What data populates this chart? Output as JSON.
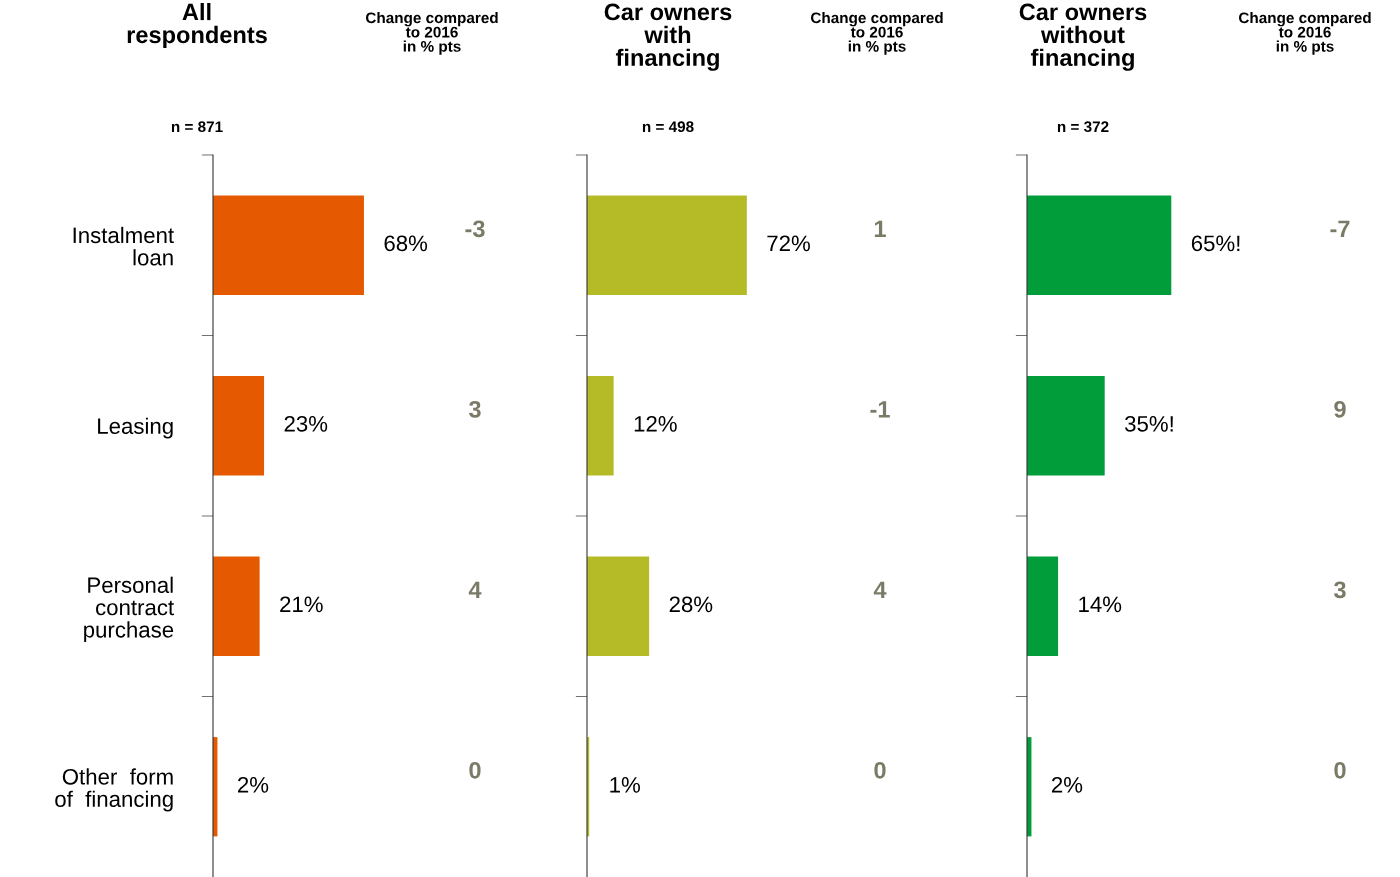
{
  "chart_data": [
    {
      "type": "bar",
      "orientation": "horizontal",
      "title": "All\nrespondents",
      "subtitle": "n = 871",
      "categories": [
        "Instalment\nloan",
        "Leasing",
        "Personal\ncontract\npurchase",
        "Other  form\nof  financing"
      ],
      "values": [
        68,
        23,
        21,
        2
      ],
      "value_labels": [
        "68%",
        "23%",
        "21%",
        "2%"
      ],
      "color": "#e55a00",
      "annotations": [
        "Change compared\nto 2016\nin % pts",
        "-3",
        "3",
        "4",
        "0"
      ],
      "tick_labels": "y",
      "grid": false,
      "legend": false
    },
    {
      "type": "bar",
      "orientation": "horizontal",
      "title": "Car owners\nwith\nfinancing",
      "subtitle": "n = 498",
      "categories": [
        null,
        null,
        null,
        null
      ],
      "values": [
        72,
        12,
        28,
        1
      ],
      "value_labels": [
        "72%",
        "12%",
        "28%",
        "1%"
      ],
      "color": "#b5bb27",
      "annotations": [
        "Change compared\nto 2016\nin % pts",
        "1",
        "-1",
        "4",
        "0"
      ],
      "tick_labels": false,
      "grid": false,
      "legend": false
    },
    {
      "type": "bar",
      "orientation": "horizontal",
      "title": "Car owners\nwithout\nfinancing",
      "subtitle": "n = 372",
      "categories": [
        null,
        null,
        null,
        null
      ],
      "values": [
        65,
        35,
        14,
        2
      ],
      "value_labels": [
        "65%!",
        "35%!",
        "14%",
        "2%"
      ],
      "color": "#009d3a",
      "annotations": [
        "Change compared\nto 2016\nin % pts",
        "-7",
        "9",
        "3",
        "0"
      ],
      "tick_labels": false,
      "grid": false,
      "legend": false
    }
  ]
}
